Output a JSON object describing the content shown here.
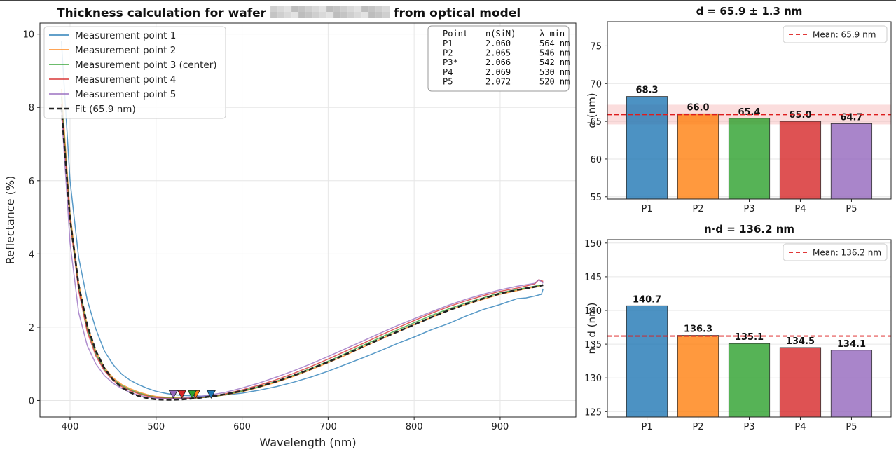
{
  "chart_data": [
    {
      "type": "line",
      "title": "Thickness calculation for wafer ▒▒▒▒▒▒▒▒▒ from optical model",
      "title_parts": {
        "before": "Thickness calculation for wafer",
        "after": "from optical model"
      },
      "xlabel": "Wavelength (nm)",
      "ylabel": "Reflectance (%)",
      "xlim": [
        365,
        988
      ],
      "ylim": [
        -0.45,
        10.3
      ],
      "xticks": [
        400,
        500,
        600,
        700,
        800,
        900
      ],
      "yticks": [
        0,
        2,
        4,
        6,
        8,
        10
      ],
      "grid": true,
      "legend_position": "top-left",
      "series": [
        {
          "name": "Measurement point 1",
          "color": "#1f77b4",
          "x": [
            390,
            400,
            410,
            420,
            430,
            440,
            450,
            460,
            470,
            480,
            490,
            500,
            510,
            520,
            530,
            540,
            550,
            560,
            570,
            580,
            600,
            620,
            640,
            660,
            680,
            700,
            720,
            740,
            760,
            780,
            800,
            820,
            840,
            860,
            880,
            900,
            920,
            930,
            940,
            948,
            950
          ],
          "y": [
            9.8,
            6.0,
            3.9,
            2.75,
            1.95,
            1.35,
            0.98,
            0.72,
            0.55,
            0.43,
            0.33,
            0.25,
            0.2,
            0.16,
            0.14,
            0.13,
            0.12,
            0.12,
            0.13,
            0.15,
            0.2,
            0.28,
            0.38,
            0.5,
            0.64,
            0.8,
            0.98,
            1.16,
            1.35,
            1.55,
            1.73,
            1.93,
            2.1,
            2.3,
            2.48,
            2.62,
            2.78,
            2.8,
            2.85,
            2.9,
            3.05
          ]
        },
        {
          "name": "Measurement point 2",
          "color": "#ff7f0e",
          "x": [
            390,
            400,
            410,
            420,
            430,
            440,
            450,
            460,
            470,
            480,
            490,
            500,
            510,
            520,
            530,
            540,
            546,
            550,
            560,
            570,
            580,
            600,
            620,
            640,
            660,
            680,
            700,
            720,
            740,
            760,
            780,
            800,
            820,
            840,
            860,
            880,
            900,
            920,
            940,
            950
          ],
          "y": [
            8.5,
            5.1,
            3.2,
            2.05,
            1.35,
            0.9,
            0.62,
            0.44,
            0.32,
            0.23,
            0.16,
            0.11,
            0.09,
            0.08,
            0.07,
            0.07,
            0.07,
            0.08,
            0.09,
            0.12,
            0.15,
            0.24,
            0.36,
            0.5,
            0.66,
            0.84,
            1.03,
            1.23,
            1.45,
            1.66,
            1.87,
            2.07,
            2.27,
            2.46,
            2.62,
            2.76,
            2.9,
            3.0,
            3.1,
            3.15
          ]
        },
        {
          "name": "Measurement point 3 (center)",
          "color": "#2ca02c",
          "x": [
            390,
            400,
            410,
            420,
            430,
            440,
            450,
            460,
            470,
            480,
            490,
            500,
            510,
            520,
            530,
            542,
            550,
            560,
            570,
            580,
            600,
            620,
            640,
            660,
            680,
            700,
            720,
            740,
            760,
            780,
            800,
            820,
            840,
            860,
            880,
            900,
            920,
            940,
            950
          ],
          "y": [
            8.3,
            5.0,
            3.1,
            1.95,
            1.28,
            0.85,
            0.58,
            0.41,
            0.29,
            0.2,
            0.14,
            0.09,
            0.07,
            0.06,
            0.06,
            0.06,
            0.07,
            0.09,
            0.12,
            0.16,
            0.26,
            0.38,
            0.53,
            0.69,
            0.88,
            1.07,
            1.28,
            1.5,
            1.71,
            1.92,
            2.12,
            2.32,
            2.5,
            2.66,
            2.8,
            2.94,
            3.03,
            3.12,
            3.15
          ]
        },
        {
          "name": "Measurement point 4",
          "color": "#d62728",
          "x": [
            390,
            400,
            410,
            420,
            430,
            440,
            450,
            460,
            470,
            480,
            490,
            500,
            510,
            520,
            530,
            540,
            550,
            560,
            570,
            580,
            600,
            620,
            640,
            660,
            680,
            700,
            720,
            740,
            760,
            780,
            800,
            820,
            840,
            860,
            880,
            900,
            920,
            940,
            945,
            950
          ],
          "y": [
            8.1,
            4.9,
            3.0,
            1.88,
            1.22,
            0.81,
            0.55,
            0.38,
            0.27,
            0.18,
            0.12,
            0.08,
            0.06,
            0.05,
            0.05,
            0.06,
            0.08,
            0.1,
            0.14,
            0.18,
            0.29,
            0.42,
            0.57,
            0.74,
            0.93,
            1.13,
            1.34,
            1.55,
            1.77,
            1.98,
            2.18,
            2.38,
            2.56,
            2.72,
            2.86,
            2.98,
            3.07,
            3.18,
            3.3,
            3.25
          ]
        },
        {
          "name": "Measurement point 5",
          "color": "#9467bd",
          "x": [
            390,
            400,
            410,
            420,
            430,
            440,
            450,
            460,
            470,
            480,
            490,
            500,
            510,
            520,
            530,
            540,
            550,
            560,
            570,
            580,
            600,
            620,
            640,
            660,
            680,
            700,
            720,
            740,
            760,
            780,
            800,
            820,
            840,
            860,
            880,
            900,
            920,
            940,
            945,
            950
          ],
          "y": [
            7.9,
            4.3,
            2.4,
            1.5,
            1.0,
            0.68,
            0.47,
            0.33,
            0.22,
            0.14,
            0.09,
            0.06,
            0.05,
            0.05,
            0.06,
            0.08,
            0.11,
            0.14,
            0.18,
            0.22,
            0.34,
            0.48,
            0.64,
            0.81,
            1.0,
            1.2,
            1.41,
            1.62,
            1.83,
            2.04,
            2.23,
            2.42,
            2.6,
            2.76,
            2.9,
            3.02,
            3.12,
            3.2,
            3.3,
            3.2
          ]
        },
        {
          "name": "Fit (65.9 nm)",
          "color": "#222222",
          "dashed": true,
          "x": [
            390,
            400,
            410,
            420,
            430,
            440,
            450,
            460,
            470,
            480,
            490,
            500,
            510,
            520,
            530,
            540,
            550,
            560,
            570,
            580,
            600,
            620,
            640,
            660,
            680,
            700,
            720,
            740,
            760,
            780,
            800,
            820,
            840,
            860,
            880,
            900,
            920,
            940,
            950
          ],
          "y": [
            8.0,
            4.95,
            3.15,
            2.05,
            1.35,
            0.88,
            0.57,
            0.36,
            0.22,
            0.12,
            0.06,
            0.03,
            0.02,
            0.02,
            0.03,
            0.05,
            0.07,
            0.1,
            0.13,
            0.17,
            0.26,
            0.38,
            0.52,
            0.68,
            0.86,
            1.05,
            1.25,
            1.46,
            1.67,
            1.87,
            2.07,
            2.27,
            2.46,
            2.63,
            2.78,
            2.92,
            3.02,
            3.1,
            3.15
          ]
        }
      ],
      "minima_markers": [
        {
          "x": 564,
          "y": 0.12,
          "color": "#1f77b4"
        },
        {
          "x": 546,
          "y": 0.12,
          "color": "#ff7f0e"
        },
        {
          "x": 542,
          "y": 0.12,
          "color": "#2ca02c"
        },
        {
          "x": 530,
          "y": 0.12,
          "color": "#d62728"
        },
        {
          "x": 520,
          "y": 0.12,
          "color": "#9467bd"
        }
      ],
      "info_table": {
        "headers": [
          "Point",
          "n(SiN)",
          "λ min"
        ],
        "rows": [
          [
            "P1",
            "2.060",
            "564 nm"
          ],
          [
            "P2",
            "2.065",
            "546 nm"
          ],
          [
            "P3*",
            "2.066",
            "542 nm"
          ],
          [
            "P4",
            "2.069",
            "530 nm"
          ],
          [
            "P5",
            "2.072",
            "520 nm"
          ]
        ]
      }
    },
    {
      "type": "bar",
      "title": "d = 65.9 ± 1.3 nm",
      "ylabel": "d (nm)",
      "categories": [
        "P1",
        "P2",
        "P3",
        "P4",
        "P5"
      ],
      "values": [
        68.3,
        66.0,
        65.4,
        65.0,
        64.7
      ],
      "value_labels": [
        "68.3",
        "66.0",
        "65.4",
        "65.0",
        "64.7"
      ],
      "colors": [
        "#1f77b4",
        "#ff7f0e",
        "#2ca02c",
        "#d62728",
        "#9467bd"
      ],
      "ylim": [
        54.7,
        78.2
      ],
      "yticks": [
        55,
        60,
        65,
        70,
        75
      ],
      "mean": 65.9,
      "mean_label": "Mean: 65.9 nm",
      "band": [
        64.6,
        67.2
      ],
      "legend_position": "top-right",
      "grid": true
    },
    {
      "type": "bar",
      "title": "n·d = 136.2 nm",
      "ylabel": "n · d (nm)",
      "categories": [
        "P1",
        "P2",
        "P3",
        "P4",
        "P5"
      ],
      "values": [
        140.7,
        136.3,
        135.1,
        134.5,
        134.1
      ],
      "value_labels": [
        "140.7",
        "136.3",
        "135.1",
        "134.5",
        "134.1"
      ],
      "colors": [
        "#1f77b4",
        "#ff7f0e",
        "#2ca02c",
        "#d62728",
        "#9467bd"
      ],
      "ylim": [
        124.2,
        150.5
      ],
      "yticks": [
        125,
        130,
        135,
        140,
        145,
        150
      ],
      "mean": 136.2,
      "mean_label": "Mean: 136.2 nm",
      "legend_position": "top-right",
      "grid": true
    }
  ]
}
